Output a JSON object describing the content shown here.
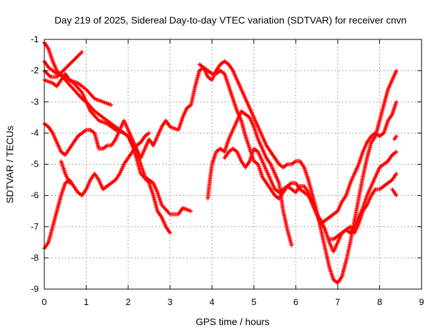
{
  "chart_data": {
    "type": "scatter",
    "title": "Day 219 of 2025, Sidereal Day-to-day VTEC variation (SDTVAR) for receiver cnvn",
    "xlabel": "GPS time / hours",
    "ylabel": "SDTVAR / TECUs",
    "xlim": [
      0,
      9
    ],
    "ylim": [
      -9,
      -1
    ],
    "xticks": [
      "0",
      "1",
      "2",
      "3",
      "4",
      "5",
      "6",
      "7",
      "8",
      "9"
    ],
    "yticks": [
      "-1",
      "-2",
      "-3",
      "-4",
      "-5",
      "-6",
      "-7",
      "-8",
      "-9"
    ],
    "grid": true,
    "marker": "+",
    "color": "#ff0000",
    "series": [
      {
        "points": [
          [
            0.0,
            -1.1
          ],
          [
            0.1,
            -1.3
          ],
          [
            0.2,
            -1.7
          ],
          [
            0.3,
            -2.0
          ],
          [
            0.5,
            -2.3
          ],
          [
            0.7,
            -2.6
          ],
          [
            0.9,
            -2.9
          ],
          [
            1.0,
            -3.0
          ],
          [
            1.2,
            -3.3
          ],
          [
            1.4,
            -3.5
          ],
          [
            1.6,
            -3.7
          ],
          [
            1.8,
            -3.9
          ],
          [
            2.0,
            -4.1
          ],
          [
            2.1,
            -4.4
          ],
          [
            2.2,
            -4.8
          ],
          [
            2.3,
            -5.3
          ],
          [
            2.5,
            -5.6
          ],
          [
            2.6,
            -6.0
          ],
          [
            2.7,
            -6.5
          ],
          [
            2.8,
            -6.7
          ],
          [
            2.9,
            -7.0
          ],
          [
            3.0,
            -7.2
          ]
        ]
      },
      {
        "points": [
          [
            0.0,
            -1.7
          ],
          [
            0.1,
            -1.9
          ],
          [
            0.3,
            -2.1
          ],
          [
            0.5,
            -2.2
          ],
          [
            0.7,
            -2.4
          ],
          [
            0.9,
            -2.7
          ],
          [
            1.0,
            -3.0
          ],
          [
            1.1,
            -3.3
          ],
          [
            1.3,
            -3.6
          ],
          [
            1.5,
            -3.7
          ],
          [
            1.7,
            -3.9
          ],
          [
            1.9,
            -4.0
          ],
          [
            2.0,
            -4.1
          ],
          [
            2.2,
            -4.6
          ],
          [
            2.3,
            -5.0
          ],
          [
            2.4,
            -5.4
          ],
          [
            2.6,
            -5.6
          ],
          [
            2.7,
            -5.9
          ],
          [
            2.8,
            -6.3
          ],
          [
            3.0,
            -6.6
          ],
          [
            3.2,
            -6.6
          ],
          [
            3.3,
            -6.4
          ],
          [
            3.5,
            -6.5
          ]
        ]
      },
      {
        "points": [
          [
            0.0,
            -2.3
          ],
          [
            0.2,
            -2.4
          ],
          [
            0.3,
            -2.5
          ],
          [
            0.4,
            -2.3
          ],
          [
            0.5,
            -2.1
          ],
          [
            0.6,
            -2.3
          ],
          [
            0.8,
            -2.4
          ],
          [
            1.0,
            -2.6
          ],
          [
            1.2,
            -2.9
          ],
          [
            1.4,
            -3.0
          ],
          [
            1.6,
            -3.1
          ]
        ]
      },
      {
        "points": [
          [
            0.0,
            -2.0
          ],
          [
            0.15,
            -2.2
          ],
          [
            0.3,
            -2.2
          ],
          [
            0.45,
            -2.0
          ],
          [
            0.6,
            -1.8
          ],
          [
            0.75,
            -1.6
          ],
          [
            0.9,
            -1.4
          ]
        ]
      },
      {
        "points": [
          [
            0.0,
            -3.7
          ],
          [
            0.1,
            -3.8
          ],
          [
            0.2,
            -4.0
          ],
          [
            0.3,
            -4.3
          ],
          [
            0.4,
            -4.6
          ],
          [
            0.5,
            -4.7
          ],
          [
            0.6,
            -4.5
          ],
          [
            0.7,
            -4.3
          ],
          [
            0.8,
            -4.1
          ],
          [
            0.9,
            -4.0
          ],
          [
            1.0,
            -3.9
          ],
          [
            1.1,
            -3.9
          ],
          [
            1.2,
            -4.0
          ],
          [
            1.3,
            -4.5
          ],
          [
            1.4,
            -4.5
          ],
          [
            1.5,
            -4.4
          ],
          [
            1.6,
            -4.4
          ],
          [
            1.7,
            -4.2
          ],
          [
            1.8,
            -3.9
          ],
          [
            1.9,
            -3.6
          ],
          [
            2.0,
            -3.9
          ],
          [
            2.1,
            -4.2
          ],
          [
            2.2,
            -4.5
          ],
          [
            2.3,
            -4.8
          ],
          [
            2.4,
            -4.5
          ],
          [
            2.5,
            -4.2
          ],
          [
            2.6,
            -4.4
          ],
          [
            2.7,
            -4.1
          ],
          [
            2.8,
            -3.8
          ],
          [
            2.9,
            -3.6
          ],
          [
            3.0,
            -3.8
          ],
          [
            3.2,
            -3.9
          ],
          [
            3.3,
            -3.5
          ],
          [
            3.4,
            -3.2
          ],
          [
            3.5,
            -3.1
          ],
          [
            3.6,
            -2.5
          ],
          [
            3.7,
            -2.0
          ],
          [
            3.8,
            -1.9
          ],
          [
            3.9,
            -2.0
          ],
          [
            4.0,
            -2.1
          ],
          [
            4.1,
            -2.1
          ],
          [
            4.2,
            -2.0
          ],
          [
            4.3,
            -2.1
          ],
          [
            4.4,
            -2.5
          ],
          [
            4.5,
            -2.9
          ],
          [
            4.6,
            -3.3
          ],
          [
            4.7,
            -3.6
          ],
          [
            4.8,
            -4.1
          ],
          [
            4.9,
            -4.5
          ],
          [
            5.0,
            -4.9
          ],
          [
            5.1,
            -5.0
          ],
          [
            5.2,
            -5.4
          ],
          [
            5.3,
            -5.6
          ],
          [
            5.4,
            -5.8
          ],
          [
            5.5,
            -6.0
          ],
          [
            5.6,
            -6.1
          ],
          [
            5.7,
            -5.9
          ],
          [
            5.8,
            -5.7
          ],
          [
            5.9,
            -5.6
          ],
          [
            6.0,
            -5.6
          ],
          [
            6.1,
            -5.8
          ],
          [
            6.2,
            -5.9
          ],
          [
            6.3,
            -6.0
          ],
          [
            6.4,
            -6.3
          ],
          [
            6.5,
            -6.6
          ],
          [
            6.6,
            -6.8
          ],
          [
            6.7,
            -7.1
          ],
          [
            6.8,
            -7.5
          ],
          [
            6.9,
            -7.8
          ],
          [
            7.0,
            -7.5
          ],
          [
            7.1,
            -7.2
          ],
          [
            7.2,
            -7.1
          ],
          [
            7.3,
            -7.0
          ],
          [
            7.4,
            -7.2
          ],
          [
            7.5,
            -6.9
          ],
          [
            7.6,
            -6.5
          ],
          [
            7.7,
            -6.3
          ],
          [
            7.8,
            -6.0
          ],
          [
            7.9,
            -5.8
          ],
          [
            8.0,
            -5.8
          ],
          [
            8.1,
            -5.7
          ],
          [
            8.2,
            -5.6
          ],
          [
            8.3,
            -5.5
          ],
          [
            8.4,
            -5.3
          ]
        ]
      },
      {
        "points": [
          [
            0.0,
            -7.7
          ],
          [
            0.1,
            -7.5
          ],
          [
            0.2,
            -7.0
          ],
          [
            0.3,
            -6.5
          ],
          [
            0.4,
            -6.0
          ],
          [
            0.5,
            -5.6
          ],
          [
            0.6,
            -5.5
          ],
          [
            0.7,
            -5.7
          ],
          [
            0.8,
            -5.9
          ],
          [
            0.9,
            -6.0
          ],
          [
            1.0,
            -5.8
          ],
          [
            1.1,
            -5.5
          ],
          [
            1.2,
            -5.3
          ],
          [
            1.3,
            -5.5
          ],
          [
            1.4,
            -5.8
          ],
          [
            1.5,
            -5.7
          ],
          [
            1.6,
            -5.6
          ],
          [
            1.7,
            -5.5
          ],
          [
            1.8,
            -5.3
          ],
          [
            1.9,
            -5.0
          ],
          [
            2.0,
            -4.8
          ],
          [
            2.1,
            -4.6
          ],
          [
            2.2,
            -4.4
          ],
          [
            2.3,
            -4.3
          ],
          [
            2.4,
            -4.1
          ],
          [
            2.5,
            -4.0
          ]
        ]
      },
      {
        "points": [
          [
            0.4,
            -4.9
          ],
          [
            0.5,
            -5.3
          ],
          [
            0.6,
            -5.6
          ]
        ]
      },
      {
        "points": [
          [
            3.9,
            -6.1
          ],
          [
            3.95,
            -5.5
          ],
          [
            4.0,
            -5.0
          ],
          [
            4.1,
            -4.6
          ],
          [
            4.2,
            -4.5
          ],
          [
            4.3,
            -4.6
          ],
          [
            4.4,
            -4.2
          ],
          [
            4.5,
            -3.9
          ],
          [
            4.6,
            -3.6
          ],
          [
            4.7,
            -3.3
          ],
          [
            4.8,
            -3.4
          ],
          [
            4.9,
            -3.5
          ],
          [
            5.0,
            -3.8
          ],
          [
            5.1,
            -4.2
          ],
          [
            5.2,
            -4.5
          ],
          [
            5.3,
            -4.8
          ],
          [
            5.4,
            -5.0
          ],
          [
            5.5,
            -5.3
          ],
          [
            5.6,
            -5.6
          ],
          [
            5.7,
            -6.5
          ],
          [
            5.8,
            -7.1
          ],
          [
            5.9,
            -7.6
          ]
        ]
      },
      {
        "points": [
          [
            3.7,
            -1.8
          ],
          [
            3.8,
            -1.9
          ],
          [
            3.9,
            -2.2
          ],
          [
            4.0,
            -2.3
          ],
          [
            4.1,
            -2.0
          ],
          [
            4.2,
            -1.8
          ],
          [
            4.3,
            -1.7
          ],
          [
            4.4,
            -1.8
          ],
          [
            4.5,
            -2.0
          ],
          [
            4.6,
            -2.3
          ],
          [
            4.7,
            -2.6
          ],
          [
            4.8,
            -2.9
          ],
          [
            4.9,
            -3.2
          ],
          [
            5.0,
            -3.5
          ],
          [
            5.1,
            -3.8
          ],
          [
            5.2,
            -4.1
          ],
          [
            5.3,
            -4.4
          ],
          [
            5.4,
            -4.6
          ],
          [
            5.5,
            -4.8
          ],
          [
            5.6,
            -5.0
          ],
          [
            5.7,
            -5.1
          ],
          [
            5.8,
            -5.0
          ],
          [
            5.9,
            -5.0
          ],
          [
            6.0,
            -4.9
          ],
          [
            6.1,
            -4.9
          ],
          [
            6.2,
            -5.1
          ],
          [
            6.3,
            -5.5
          ],
          [
            6.4,
            -6.0
          ],
          [
            6.5,
            -6.5
          ],
          [
            6.6,
            -7.1
          ],
          [
            6.7,
            -7.7
          ],
          [
            6.8,
            -8.3
          ],
          [
            6.9,
            -8.7
          ],
          [
            7.0,
            -8.8
          ],
          [
            7.1,
            -8.6
          ],
          [
            7.2,
            -8.1
          ],
          [
            7.3,
            -7.5
          ],
          [
            7.4,
            -6.8
          ],
          [
            7.5,
            -6.1
          ],
          [
            7.6,
            -5.4
          ],
          [
            7.7,
            -4.8
          ],
          [
            7.8,
            -4.3
          ],
          [
            7.9,
            -4.1
          ],
          [
            8.0,
            -3.6
          ],
          [
            8.1,
            -3.1
          ],
          [
            8.2,
            -2.6
          ],
          [
            8.3,
            -2.3
          ],
          [
            8.4,
            -2.0
          ]
        ]
      },
      {
        "points": [
          [
            4.3,
            -4.8
          ],
          [
            4.4,
            -4.6
          ],
          [
            4.5,
            -4.5
          ],
          [
            4.6,
            -4.6
          ],
          [
            4.7,
            -4.9
          ],
          [
            4.8,
            -5.1
          ],
          [
            4.9,
            -4.9
          ],
          [
            5.0,
            -4.5
          ],
          [
            5.1,
            -4.6
          ],
          [
            5.2,
            -4.9
          ],
          [
            5.3,
            -5.2
          ],
          [
            5.4,
            -5.5
          ],
          [
            5.5,
            -5.8
          ],
          [
            5.6,
            -5.9
          ],
          [
            5.7,
            -5.8
          ],
          [
            5.8,
            -5.7
          ],
          [
            5.9,
            -5.8
          ],
          [
            6.0,
            -5.9
          ],
          [
            6.1,
            -5.7
          ],
          [
            6.2,
            -5.7
          ],
          [
            6.3,
            -5.9
          ],
          [
            6.4,
            -6.2
          ],
          [
            6.5,
            -6.6
          ],
          [
            6.6,
            -6.9
          ],
          [
            6.7,
            -6.8
          ],
          [
            6.8,
            -6.7
          ],
          [
            6.9,
            -6.6
          ],
          [
            7.0,
            -6.5
          ],
          [
            7.1,
            -6.2
          ],
          [
            7.2,
            -6.0
          ],
          [
            7.3,
            -5.6
          ],
          [
            7.4,
            -5.3
          ],
          [
            7.5,
            -5.0
          ],
          [
            7.6,
            -4.6
          ],
          [
            7.7,
            -4.3
          ],
          [
            7.8,
            -4.1
          ],
          [
            7.9,
            -4.0
          ],
          [
            8.0,
            -4.1
          ],
          [
            8.1,
            -4.0
          ],
          [
            8.2,
            -3.6
          ],
          [
            8.3,
            -3.4
          ],
          [
            8.4,
            -3.0
          ]
        ]
      },
      {
        "points": [
          [
            6.8,
            -7.4
          ],
          [
            6.9,
            -7.4
          ],
          [
            7.0,
            -7.3
          ],
          [
            7.1,
            -7.2
          ],
          [
            7.2,
            -7.1
          ],
          [
            7.3,
            -7.2
          ],
          [
            7.4,
            -7.0
          ],
          [
            7.5,
            -6.7
          ],
          [
            7.6,
            -6.4
          ],
          [
            7.7,
            -6.0
          ],
          [
            7.8,
            -5.7
          ],
          [
            7.9,
            -5.4
          ],
          [
            8.0,
            -5.1
          ],
          [
            8.1,
            -5.0
          ],
          [
            8.2,
            -4.9
          ],
          [
            8.3,
            -4.7
          ],
          [
            8.4,
            -4.6
          ]
        ]
      },
      {
        "points": [
          [
            8.3,
            -5.8
          ],
          [
            8.35,
            -5.9
          ],
          [
            8.4,
            -6.0
          ]
        ]
      },
      {
        "points": [
          [
            8.35,
            -4.2
          ],
          [
            8.4,
            -4.1
          ]
        ]
      }
    ]
  }
}
